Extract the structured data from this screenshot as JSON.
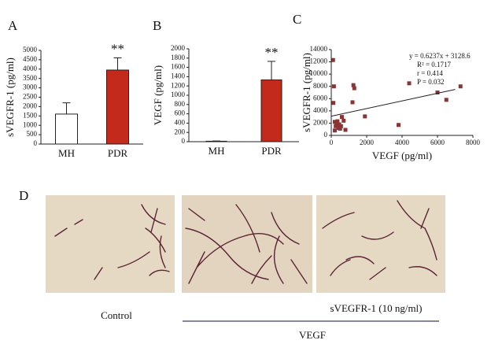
{
  "panel_labels": [
    "A",
    "B",
    "C",
    "D"
  ],
  "chart_data": [
    {
      "type": "bar",
      "ylabel": "sVEGFR-1 (pg/ml)",
      "categories": [
        "MH",
        "PDR"
      ],
      "values": [
        1600,
        3950
      ],
      "errors": [
        600,
        650
      ],
      "colors": [
        "#ffffff",
        "#c42a1c"
      ],
      "bar_annotations": [
        null,
        "**"
      ],
      "ylim": [
        0,
        5000
      ],
      "yticks": [
        0,
        500,
        1000,
        1500,
        2000,
        2500,
        3000,
        3500,
        4000,
        4500,
        5000
      ]
    },
    {
      "type": "bar",
      "ylabel": "VEGF (pg/ml)",
      "categories": [
        "MH",
        "PDR"
      ],
      "values": [
        10,
        1330
      ],
      "errors": [
        5,
        400
      ],
      "colors": [
        "#ffffff",
        "#c42a1c"
      ],
      "bar_annotations": [
        null,
        "**"
      ],
      "ylim": [
        0,
        2000
      ],
      "yticks": [
        0,
        200,
        400,
        600,
        800,
        1000,
        1200,
        1400,
        1600,
        1800,
        2000
      ]
    },
    {
      "type": "scatter",
      "xlabel": "VEGF (pg/ml)",
      "ylabel": "sVEGFR-1 (pg/ml)",
      "color": "#8b3434",
      "x": [
        100,
        150,
        120,
        250,
        200,
        300,
        400,
        350,
        450,
        550,
        700,
        800,
        600,
        1200,
        1250,
        1300,
        1900,
        3800,
        4400,
        6000,
        6500,
        7300,
        200,
        500
      ],
      "y": [
        12300,
        8000,
        5300,
        1500,
        800,
        2000,
        1200,
        2300,
        1800,
        1500,
        2400,
        900,
        3000,
        5400,
        8200,
        7700,
        3100,
        1700,
        8500,
        7000,
        5800,
        8000,
        2200,
        1100
      ],
      "fit_line": {
        "x": [
          0,
          7000
        ],
        "y": [
          3128.6,
          7494.5
        ]
      },
      "annotations": [
        "y = 0.6237x + 3128.6",
        "R² = 0.1717",
        "r = 0.414",
        "P = 0.032"
      ],
      "xlim": [
        0,
        8000
      ],
      "xticks": [
        0,
        2000,
        4000,
        6000,
        8000
      ],
      "ylim": [
        0,
        14000
      ],
      "yticks": [
        0,
        2000,
        4000,
        6000,
        8000,
        10000,
        12000,
        14000
      ]
    }
  ],
  "panel_d": {
    "conditions": [
      "Control",
      "sVEGFR-1 (10 ng/ml)"
    ],
    "treatment": "VEGF"
  }
}
